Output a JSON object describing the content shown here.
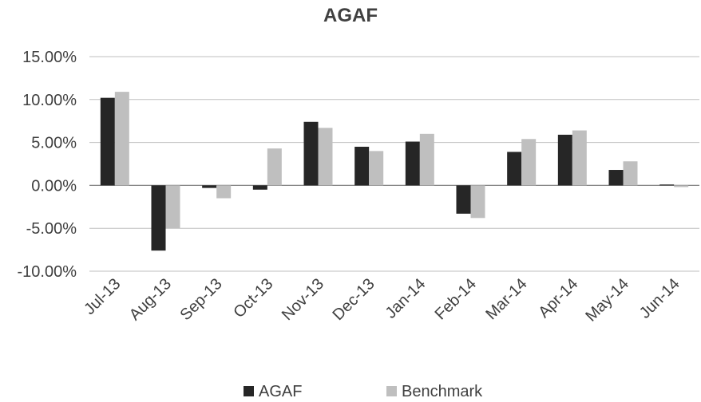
{
  "chart_data": {
    "type": "bar",
    "title": "AGAF",
    "xlabel": "",
    "ylabel": "",
    "categories": [
      "Jul-13",
      "Aug-13",
      "Sep-13",
      "Oct-13",
      "Nov-13",
      "Dec-13",
      "Jan-14",
      "Feb-14",
      "Mar-14",
      "Apr-14",
      "May-14",
      "Jun-14"
    ],
    "series": [
      {
        "name": "AGAF",
        "color": "#262626",
        "values": [
          10.2,
          -7.6,
          -0.3,
          -0.5,
          7.4,
          4.5,
          5.1,
          -3.3,
          3.9,
          5.9,
          1.8,
          0.1
        ]
      },
      {
        "name": "Benchmark",
        "color": "#bfbfbf",
        "values": [
          10.9,
          -5.0,
          -1.5,
          4.3,
          6.7,
          4.0,
          6.0,
          -3.8,
          5.4,
          6.4,
          2.8,
          -0.2
        ]
      }
    ],
    "ylim": [
      -10,
      15
    ],
    "yticks": [
      15,
      10,
      5,
      0,
      -5,
      -10
    ],
    "ytick_labels": [
      "15.00%",
      "10.00%",
      "5.00%",
      "0.00%",
      "-5.00%",
      "-10.00%"
    ],
    "grid": true,
    "legend_position": "bottom"
  }
}
